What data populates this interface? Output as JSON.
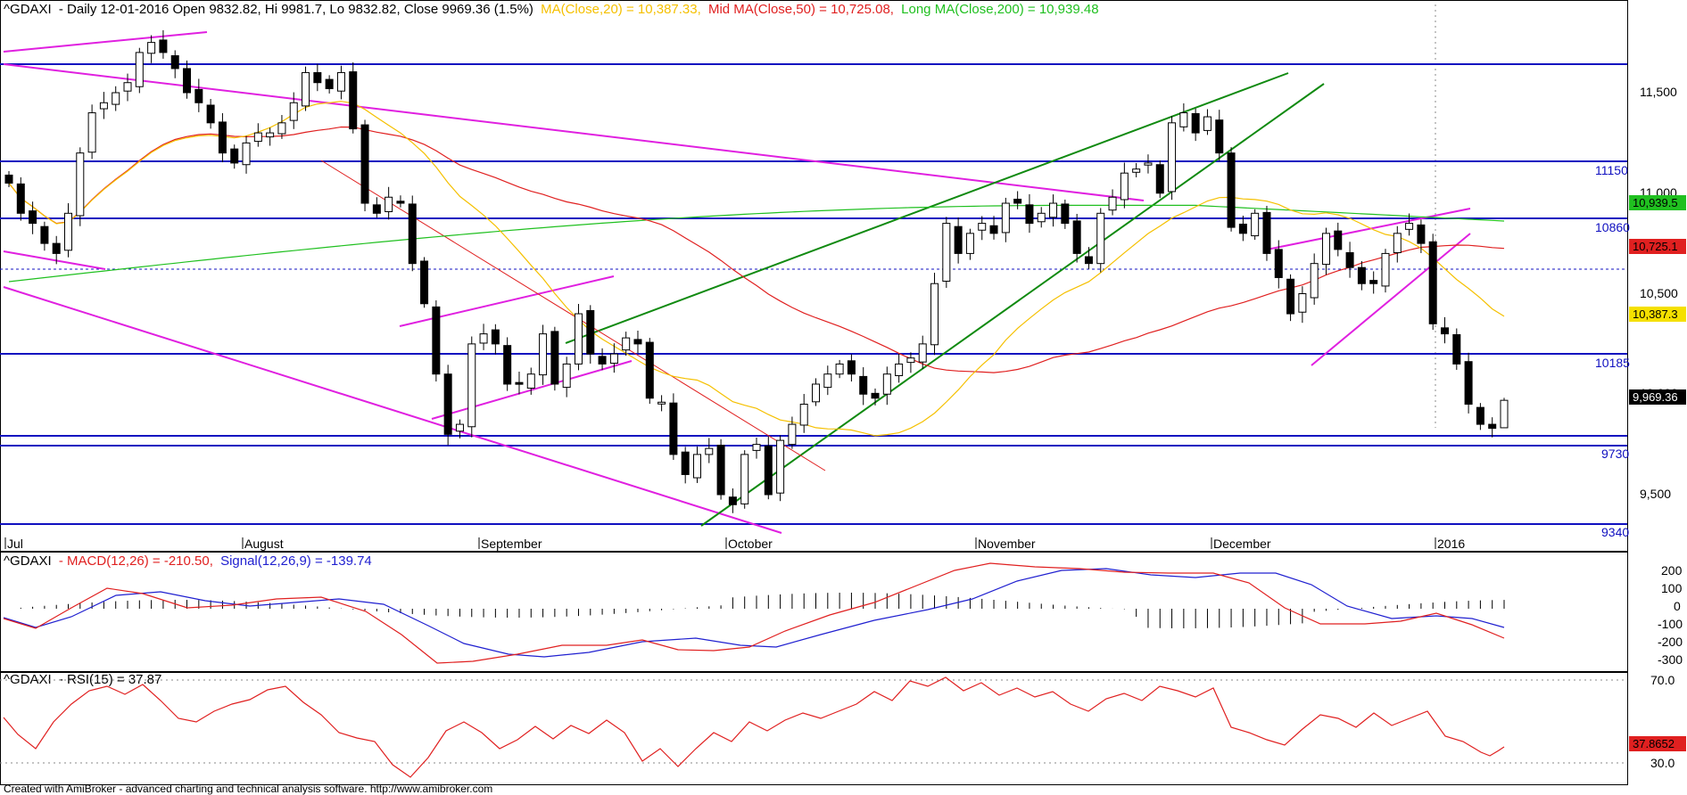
{
  "header": {
    "symbol": "^GDAXI",
    "text": "- Daily 12-01-2016 Open 9832.82, Hi 9981.7, Lo 9832.82, Close 9969.36 (1.5%)",
    "ma20": "MA(Close,20) = 10,387.33,",
    "ma50": "Mid MA(Close,50) = 10,725.08,",
    "ma200": "Long MA(Close,200) = 10,939.48"
  },
  "macd_header": {
    "symbol": "^GDAXI",
    "macd": "- MACD(12,26) = -210.50,",
    "signal": "Signal(12,26,9) = -139.74"
  },
  "rsi_header": {
    "symbol": "^GDAXI",
    "rsi": "- RSI(15) = 37.87"
  },
  "footer": "Created with AmiBroker - advanced charting and technical analysis software. http://www.amibroker.com",
  "colors": {
    "background": "#ffffff",
    "up_candle": "#ffffff",
    "down_candle": "#000000",
    "ma20": "#f5c000",
    "ma50": "#e02020",
    "ma200": "#20c020",
    "level": "#1010c0",
    "trend_magenta": "#e020e0",
    "trend_green": "#108a10",
    "macd": "#e02020",
    "signal": "#2020d0",
    "rsi": "#e02020"
  },
  "chart_data": [
    {
      "type": "candlestick",
      "panel": "price",
      "y_ticks": [
        "11,500",
        "11,000",
        "10,500",
        "10,000",
        "9,500"
      ],
      "x_labels": [
        "Jul",
        "August",
        "September",
        "October",
        "November",
        "December",
        "2016"
      ],
      "level_lines": [
        {
          "label": "",
          "value": 11640
        },
        {
          "label": "11150",
          "value": 11150
        },
        {
          "label": "10860",
          "value": 10860
        },
        {
          "label": "",
          "value": 10610,
          "dashed": true
        },
        {
          "label": "10185",
          "value": 10185
        },
        {
          "label": "",
          "value": 9780
        },
        {
          "label": "9730",
          "value": 9730
        },
        {
          "label": "9340",
          "value": 9340
        }
      ],
      "value_tags": [
        {
          "label": "10,939.5",
          "value": 10939.5,
          "bg": "#20c020",
          "fg": "#000000"
        },
        {
          "label": "10,725.1",
          "value": 10725.1,
          "bg": "#e02020",
          "fg": "#000000"
        },
        {
          "label": "10,387.3",
          "value": 10387.3,
          "bg": "#f5e000",
          "fg": "#000000"
        },
        {
          "label": "9,969.36",
          "value": 9969.36,
          "bg": "#000000",
          "fg": "#ffffff"
        }
      ],
      "candles_close": [
        11050,
        10900,
        10850,
        10750,
        10700,
        10900,
        11200,
        11400,
        11450,
        11500,
        11550,
        11700,
        11750,
        11700,
        11620,
        11500,
        11450,
        11350,
        11200,
        11150,
        11250,
        11300,
        11300,
        11350,
        11450,
        11600,
        11550,
        11520,
        11600,
        11320,
        10950,
        10900,
        10980,
        10950,
        10650,
        10450,
        10100,
        9800,
        9850,
        10250,
        10300,
        10250,
        10050,
        10050,
        10100,
        10300,
        10050,
        10150,
        10400,
        10200,
        10150,
        10200,
        10280,
        10250,
        9980,
        9960,
        9700,
        9600,
        9700,
        9730,
        9500,
        9450,
        9700,
        9750,
        9500,
        9770,
        9850,
        9950,
        10050,
        10100,
        10150,
        10100,
        10000,
        9980,
        10100,
        10150,
        10180,
        10250,
        10550,
        10850,
        10700,
        10800,
        10850,
        10800,
        10950,
        10950,
        10850,
        10900,
        10950,
        10850,
        10700,
        10650,
        10900,
        10980,
        11100,
        11120,
        11150,
        11000,
        11350,
        11400,
        11300,
        11380,
        11200,
        10830,
        10800,
        10900,
        10700,
        10580,
        10400,
        10500,
        10650,
        10800,
        10720,
        10630,
        10550,
        10550,
        10700,
        10800,
        10850,
        10750,
        10350,
        10300,
        10150,
        9950,
        9850,
        9830,
        9969.36
      ],
      "ma20_endpoint": 10387.33,
      "ma50_endpoint": 10725.08,
      "ma200_endpoint": 10939.48
    },
    {
      "type": "line",
      "panel": "macd",
      "series": [
        {
          "name": "MACD(12,26)",
          "last": -210.5
        },
        {
          "name": "Signal(12,26,9)",
          "last": -139.74
        }
      ],
      "y_ticks": [
        "200",
        "100",
        "0",
        "-100",
        "-200",
        "-300"
      ]
    },
    {
      "type": "line",
      "panel": "rsi",
      "series": [
        {
          "name": "RSI(15)",
          "last": 37.87
        }
      ],
      "y_ticks": [
        "70.0",
        "30.0"
      ],
      "value_tag": "37.8652"
    }
  ]
}
